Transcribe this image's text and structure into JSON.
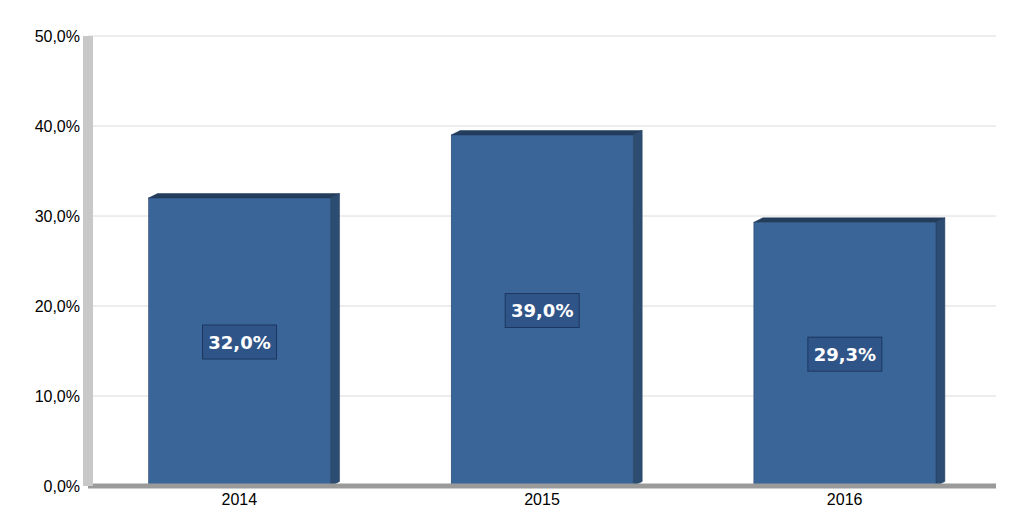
{
  "chart_data": {
    "type": "bar",
    "categories": [
      "2014",
      "2015",
      "2016"
    ],
    "values": [
      32.0,
      39.0,
      29.3
    ],
    "value_labels": [
      "32,0%",
      "39,0%",
      "29,3%"
    ],
    "color": "#3a6598",
    "ylim": [
      0,
      50
    ],
    "yticks": [
      {
        "value": 0,
        "label": "0,0%"
      },
      {
        "value": 10,
        "label": "10,0%"
      },
      {
        "value": 20,
        "label": "20,0%"
      },
      {
        "value": 30,
        "label": "30,0%"
      },
      {
        "value": 40,
        "label": "40,0%"
      },
      {
        "value": 50,
        "label": "50,0%"
      }
    ],
    "grid": true,
    "data_labels": true
  }
}
